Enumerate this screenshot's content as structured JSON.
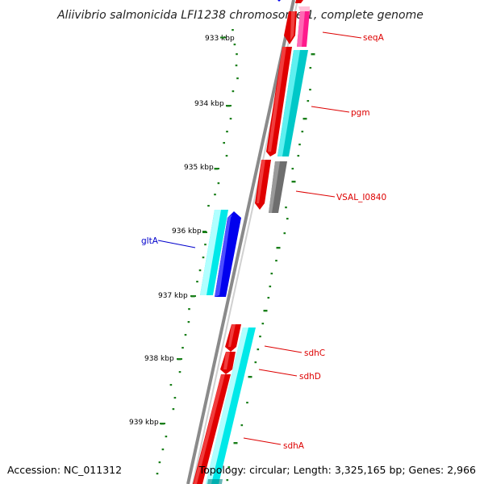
{
  "title": "Aliivibrio salmonicida LFI1238 chromosome 1, complete genome",
  "footer": {
    "accession": "Accession: NC_011312",
    "summary": "Topology: circular; Length: 3,325,165 bp; Genes: 2,966"
  },
  "ruler": {
    "labels": [
      "933 kbp",
      "934 kbp",
      "935 kbp",
      "936 kbp",
      "937 kbp",
      "938 kbp",
      "939 kbp"
    ]
  },
  "genes": {
    "seqA": "seqA",
    "pgm": "pgm",
    "vsal_i0840": "VSAL_I0840",
    "gltA": "gltA",
    "sdhC": "sdhC",
    "sdhD": "sdhD",
    "sdhA": "sdhA"
  },
  "colors": {
    "backbone": "#8a8a8a",
    "forward_cds": "#e00000",
    "cog_cyan": "#00d8d8",
    "reverse_cds": "#0000ee",
    "grey_cog": "#6e6e6e",
    "pink_cog": "#ff1a8c",
    "tick_green": "#1a7f1a",
    "red_label": "#dd0000",
    "blue_label": "#0000cc"
  }
}
